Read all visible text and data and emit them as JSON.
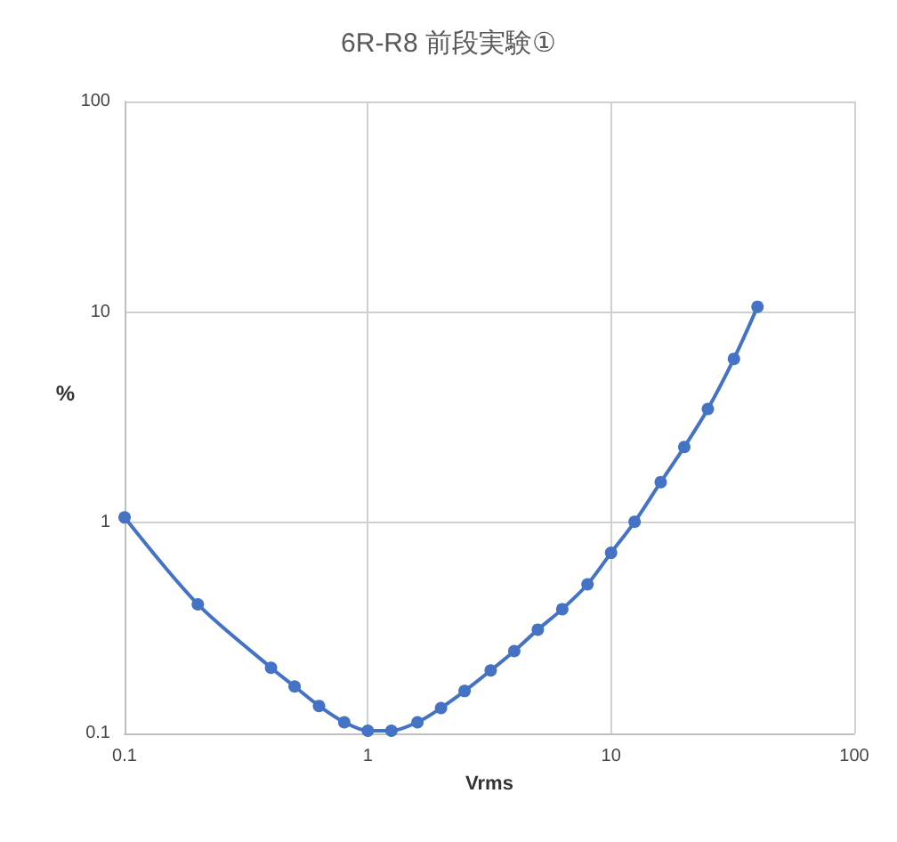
{
  "chart_data": {
    "type": "line",
    "title": "6R-R8 前段実験①",
    "xlabel": "Vrms",
    "ylabel": "%",
    "x": [
      0.1,
      0.2,
      0.4,
      0.5,
      0.63,
      0.8,
      1,
      1.25,
      1.6,
      2,
      2.5,
      3.2,
      4,
      5,
      6.3,
      8,
      10,
      12.5,
      16,
      20,
      25,
      32,
      40
    ],
    "series": [
      {
        "color": "#4472c4",
        "values": [
          1.06,
          0.41,
          0.205,
          0.167,
          0.135,
          0.113,
          0.103,
          0.103,
          0.113,
          0.132,
          0.159,
          0.199,
          0.246,
          0.311,
          0.389,
          0.51,
          0.72,
          1.01,
          1.56,
          2.29,
          3.47,
          6.0,
          10.6
        ]
      }
    ],
    "xlim": [
      0.1,
      100
    ],
    "xticks": [
      0.1,
      1,
      10,
      100
    ],
    "ylim": [
      0.1,
      100
    ],
    "yticks": [
      0.1,
      1,
      10,
      100
    ],
    "log": "xy",
    "grid": true,
    "marker": "circle",
    "line_style": "solid"
  }
}
